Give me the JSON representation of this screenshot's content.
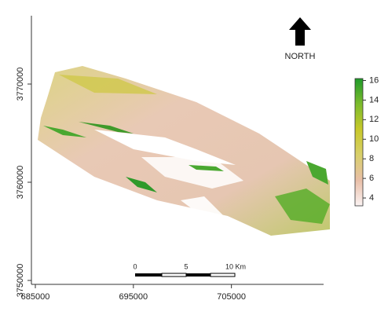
{
  "map": {
    "xlim": [
      684600,
      714000
    ],
    "ylim": [
      3749600,
      3778000
    ],
    "xticks": [
      685000,
      695000,
      705000
    ],
    "yticks": [
      3750000,
      3760000,
      3770000
    ],
    "north_label": "NORTH",
    "scale_bar": {
      "labels": [
        0,
        5,
        "10 Km"
      ]
    },
    "legend": {
      "lim": [
        3.2,
        16.2
      ],
      "ticks": [
        4,
        6,
        8,
        10,
        12,
        14,
        16
      ],
      "colors": [
        "#fbf3f3",
        "#e9bfa8",
        "#d8cf6a",
        "#c8c82a",
        "#7cbb2c",
        "#1f9a2a"
      ]
    }
  }
}
